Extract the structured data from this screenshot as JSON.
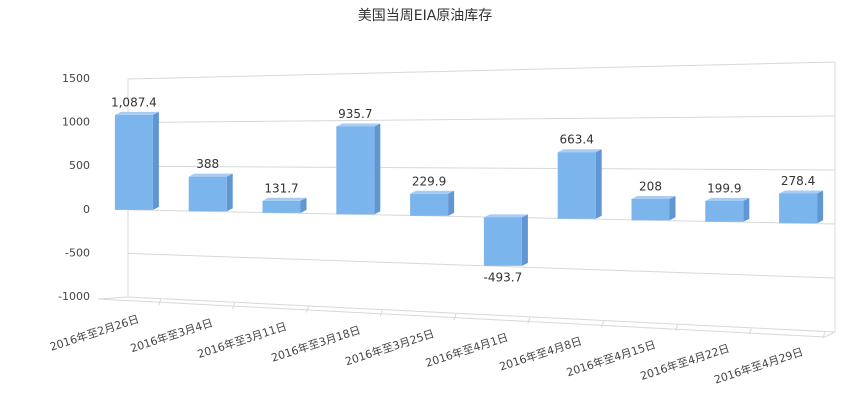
{
  "chart_data": {
    "type": "bar",
    "title": "美国当周EIA原油库存",
    "categories": [
      "2016年至2月26日",
      "2016年至3月4日",
      "2016年至3月11日",
      "2016年至3月18日",
      "2016年至3月25日",
      "2016年至4月1日",
      "2016年至4月8日",
      "2016年至4月15日",
      "2016年至4月22日",
      "2016年至4月29日"
    ],
    "values": [
      1087.4,
      388,
      131.7,
      935.7,
      229.9,
      -493.7,
      663.4,
      208,
      199.9,
      278.4
    ],
    "value_labels": [
      "1,087.4",
      "388",
      "131.7",
      "935.7",
      "229.9",
      "-493.7",
      "663.4",
      "208",
      "199.9",
      "278.4"
    ],
    "color": "#7cb5ec",
    "ylim": [
      -1000,
      1500
    ],
    "yticks": [
      -1000,
      -500,
      0,
      500,
      1000,
      1500
    ],
    "grid": true
  }
}
